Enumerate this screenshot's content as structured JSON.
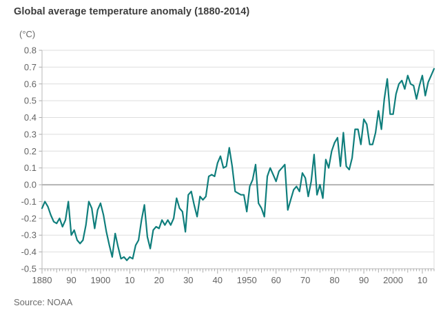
{
  "header": {
    "title": "Global average temperature anomaly (1880-2014)",
    "unit_label": "(°C)"
  },
  "footer": {
    "source": "Source: NOAA"
  },
  "chart_data": {
    "type": "line",
    "title": "Global average temperature anomaly (1880-2014)",
    "ylabel": "(°C)",
    "xlabel": "",
    "ylim": [
      -0.5,
      0.8
    ],
    "y_tick_step": 0.1,
    "xlim": [
      1880,
      2014
    ],
    "grid": "horizontal, light gray, darker line at 0.0",
    "legend": "none",
    "line_color": "#0f7e7c",
    "colors": {
      "grid": "#dedede",
      "zero_line": "#b3b3b3",
      "axis": "#b9b9b9",
      "tick": "#a9a9a9",
      "label_text": "#636363",
      "title_text": "#3d3d3d"
    },
    "x_ticks": [
      {
        "year": 1880,
        "label": "1880"
      },
      {
        "year": 1890,
        "label": "90"
      },
      {
        "year": 1900,
        "label": "1900"
      },
      {
        "year": 1910,
        "label": "10"
      },
      {
        "year": 1920,
        "label": "20"
      },
      {
        "year": 1930,
        "label": "30"
      },
      {
        "year": 1940,
        "label": "40"
      },
      {
        "year": 1950,
        "label": "1950"
      },
      {
        "year": 1960,
        "label": "60"
      },
      {
        "year": 1970,
        "label": "70"
      },
      {
        "year": 1980,
        "label": "80"
      },
      {
        "year": 1990,
        "label": "90"
      },
      {
        "year": 2000,
        "label": "2000"
      },
      {
        "year": 2010,
        "label": "10"
      }
    ],
    "series": [
      {
        "name": "Annual global average temperature anomaly (°C)",
        "years": [
          1880,
          1881,
          1882,
          1883,
          1884,
          1885,
          1886,
          1887,
          1888,
          1889,
          1890,
          1891,
          1892,
          1893,
          1894,
          1895,
          1896,
          1897,
          1898,
          1899,
          1900,
          1901,
          1902,
          1903,
          1904,
          1905,
          1906,
          1907,
          1908,
          1909,
          1910,
          1911,
          1912,
          1913,
          1914,
          1915,
          1916,
          1917,
          1918,
          1919,
          1920,
          1921,
          1922,
          1923,
          1924,
          1925,
          1926,
          1927,
          1928,
          1929,
          1930,
          1931,
          1932,
          1933,
          1934,
          1935,
          1936,
          1937,
          1938,
          1939,
          1940,
          1941,
          1942,
          1943,
          1944,
          1945,
          1946,
          1947,
          1948,
          1949,
          1950,
          1951,
          1952,
          1953,
          1954,
          1955,
          1956,
          1957,
          1958,
          1959,
          1960,
          1961,
          1962,
          1963,
          1964,
          1965,
          1966,
          1967,
          1968,
          1969,
          1970,
          1971,
          1972,
          1973,
          1974,
          1975,
          1976,
          1977,
          1978,
          1979,
          1980,
          1981,
          1982,
          1983,
          1984,
          1985,
          1986,
          1987,
          1988,
          1989,
          1990,
          1991,
          1992,
          1993,
          1994,
          1995,
          1996,
          1997,
          1998,
          1999,
          2000,
          2001,
          2002,
          2003,
          2004,
          2005,
          2006,
          2007,
          2008,
          2009,
          2010,
          2011,
          2012,
          2013,
          2014
        ],
        "values": [
          -0.14,
          -0.1,
          -0.13,
          -0.18,
          -0.22,
          -0.23,
          -0.2,
          -0.25,
          -0.21,
          -0.1,
          -0.3,
          -0.27,
          -0.33,
          -0.35,
          -0.33,
          -0.24,
          -0.1,
          -0.14,
          -0.26,
          -0.15,
          -0.11,
          -0.18,
          -0.28,
          -0.36,
          -0.43,
          -0.29,
          -0.37,
          -0.44,
          -0.43,
          -0.45,
          -0.43,
          -0.44,
          -0.36,
          -0.33,
          -0.21,
          -0.12,
          -0.31,
          -0.38,
          -0.27,
          -0.25,
          -0.26,
          -0.21,
          -0.24,
          -0.21,
          -0.24,
          -0.2,
          -0.08,
          -0.14,
          -0.16,
          -0.28,
          -0.06,
          -0.04,
          -0.12,
          -0.19,
          -0.07,
          -0.09,
          -0.07,
          0.05,
          0.06,
          0.05,
          0.13,
          0.17,
          0.1,
          0.11,
          0.22,
          0.11,
          -0.04,
          -0.05,
          -0.06,
          -0.06,
          -0.16,
          -0.01,
          0.03,
          0.12,
          -0.11,
          -0.14,
          -0.19,
          0.05,
          0.1,
          0.06,
          0.02,
          0.08,
          0.1,
          0.12,
          -0.15,
          -0.09,
          -0.03,
          -0.01,
          -0.04,
          0.07,
          0.04,
          -0.07,
          0.02,
          0.18,
          -0.06,
          0.0,
          -0.08,
          0.15,
          0.1,
          0.2,
          0.25,
          0.28,
          0.11,
          0.31,
          0.11,
          0.09,
          0.16,
          0.33,
          0.33,
          0.24,
          0.39,
          0.36,
          0.24,
          0.24,
          0.31,
          0.44,
          0.33,
          0.51,
          0.63,
          0.42,
          0.42,
          0.54,
          0.6,
          0.62,
          0.57,
          0.65,
          0.6,
          0.59,
          0.51,
          0.59,
          0.65,
          0.53,
          0.61,
          0.65,
          0.69
        ]
      }
    ]
  }
}
